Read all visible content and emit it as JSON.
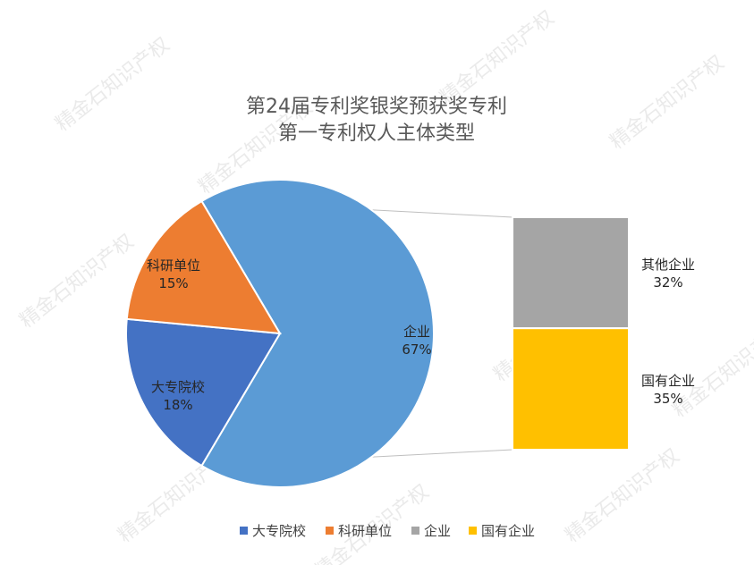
{
  "watermark": "精金石知识产权",
  "chart_data": {
    "type": "bar-of-pie",
    "title": [
      "第24届专利奖银奖预获奖专利",
      "第一专利权人主体类型"
    ],
    "pie": {
      "categories": [
        "企业",
        "大专院校",
        "科研单位"
      ],
      "values": [
        67,
        18,
        15
      ],
      "labels": [
        "67%",
        "18%",
        "15%"
      ],
      "colors": [
        "#5B9BD5",
        "#4472C4",
        "#ED7D31"
      ]
    },
    "bar": {
      "categories": [
        "其他企业",
        "国有企业"
      ],
      "values": [
        32,
        35
      ],
      "labels": [
        "32%",
        "35%"
      ],
      "colors": [
        "#A5A5A5",
        "#FFC000"
      ]
    },
    "legend": {
      "position": "bottom",
      "items": [
        {
          "name": "大专院校",
          "color": "#4472C4"
        },
        {
          "name": "科研单位",
          "color": "#ED7D31"
        },
        {
          "name": "企业",
          "color": "#A5A5A5"
        },
        {
          "name": "国有企业",
          "color": "#FFC000"
        }
      ]
    }
  }
}
